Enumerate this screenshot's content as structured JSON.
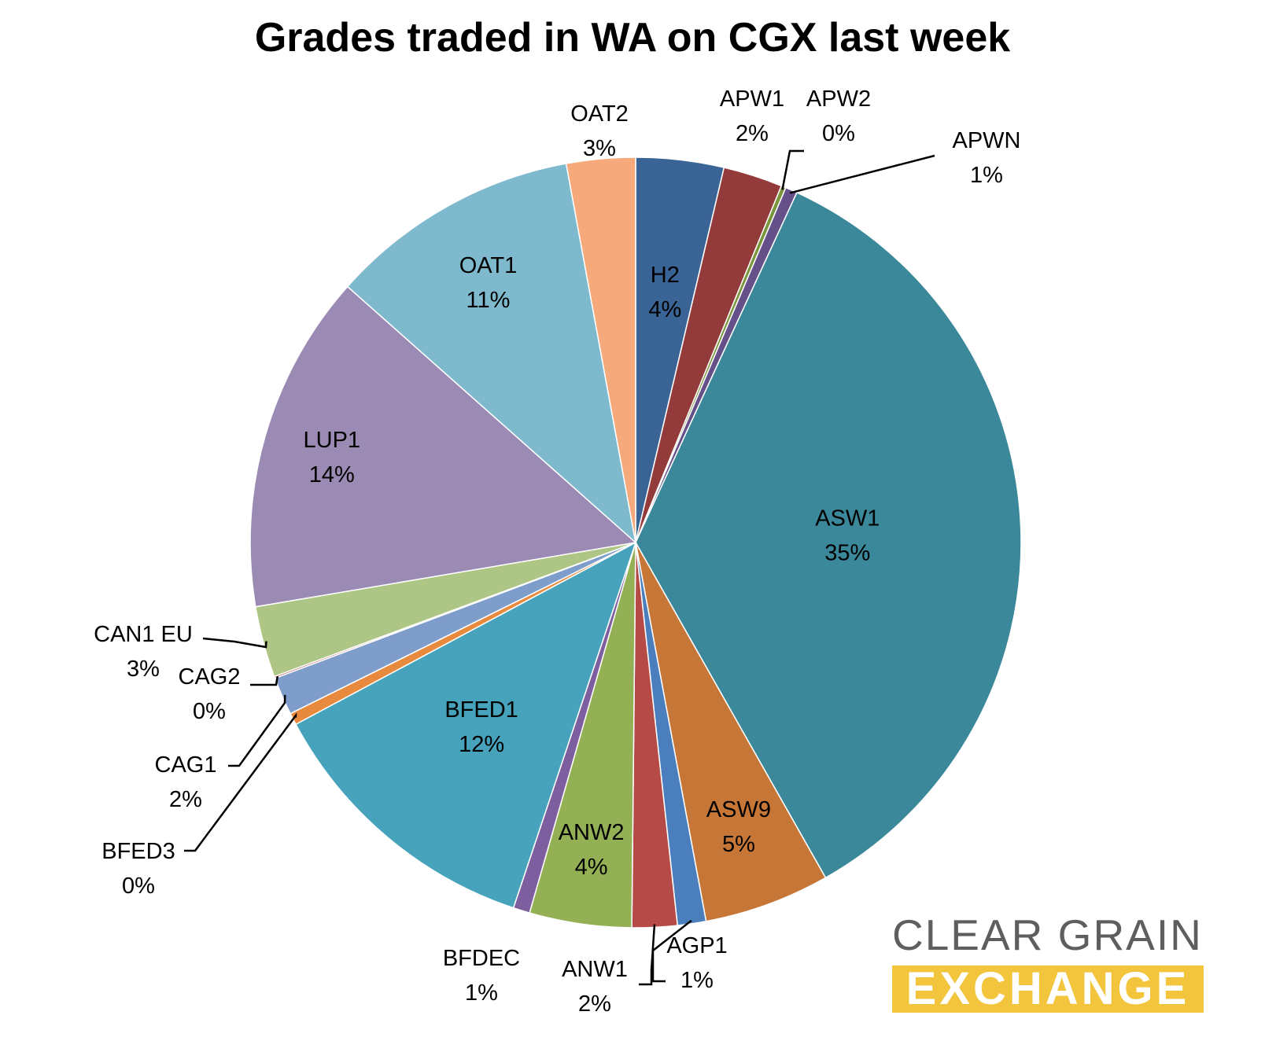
{
  "chart_data": {
    "type": "pie",
    "title": "Grades traded in WA on CGX last week",
    "slices": [
      {
        "label": "H2",
        "value": 3.7,
        "pct": "4%",
        "color": "#3b6496"
      },
      {
        "label": "APW1",
        "value": 2.5,
        "pct": "2%",
        "color": "#933b3a"
      },
      {
        "label": "APW2",
        "value": 0.2,
        "pct": "0%",
        "color": "#7a953c"
      },
      {
        "label": "APWN",
        "value": 0.5,
        "pct": "1%",
        "color": "#65508a"
      },
      {
        "label": "ASW1",
        "value": 35.1,
        "pct": "35%",
        "color": "#3a889a"
      },
      {
        "label": "ASW9",
        "value": 5.3,
        "pct": "5%",
        "color": "#c67636"
      },
      {
        "label": "AGP1",
        "value": 1.2,
        "pct": "1%",
        "color": "#4b7ebc"
      },
      {
        "label": "ANW1",
        "value": 1.9,
        "pct": "2%",
        "color": "#b54a47"
      },
      {
        "label": "ANW2",
        "value": 4.3,
        "pct": "4%",
        "color": "#93b055"
      },
      {
        "label": "BFDEC",
        "value": 0.7,
        "pct": "1%",
        "color": "#7d5e9e"
      },
      {
        "label": "BFED1",
        "value": 12.1,
        "pct": "12%",
        "color": "#46a3bb"
      },
      {
        "label": "BFED3",
        "value": 0.5,
        "pct": "0%",
        "color": "#e88a3e"
      },
      {
        "label": "CAG1",
        "value": 1.6,
        "pct": "2%",
        "color": "#7f9dcb"
      },
      {
        "label": "CAG2",
        "value": 0.08,
        "pct": "0%",
        "color": "#d07877"
      },
      {
        "label": "CAN1 EU",
        "value": 3.0,
        "pct": "3%",
        "color": "#adc685"
      },
      {
        "label": "LUP1",
        "value": 14.3,
        "pct": "14%",
        "color": "#9b8ab3"
      },
      {
        "label": "OAT1",
        "value": 10.6,
        "pct": "11%",
        "color": "#7eb9ce"
      },
      {
        "label": "OAT2",
        "value": 2.9,
        "pct": "3%",
        "color": "#f6a97a"
      }
    ]
  },
  "logo": {
    "line1": "CLEAR GRAIN",
    "line2": "EXCHANGE",
    "text_color": "#5e5e5e",
    "band_color": "#f2c53c"
  }
}
